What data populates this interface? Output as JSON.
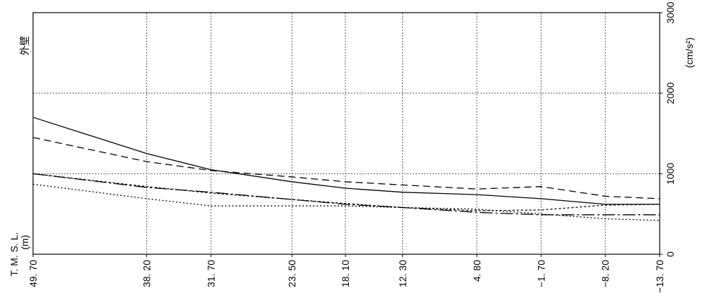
{
  "chart_data": {
    "type": "line",
    "title": "",
    "panel_label": "外壁",
    "xlabel": "T. M. S. L.",
    "x_unit": "(m)",
    "ylabel": "(cm/s²)",
    "x": [
      49.7,
      38.2,
      31.7,
      23.5,
      18.1,
      12.3,
      4.8,
      -1.7,
      -8.2,
      -13.7
    ],
    "x_tick_labels": [
      "49. 70",
      "38. 20",
      "31. 70",
      "23. 50",
      "18. 10",
      "12. 30",
      "4. 80",
      "−1. 70",
      "−8. 20",
      "−13. 70"
    ],
    "y_ticks": [
      0,
      1000,
      2000,
      3000
    ],
    "ylim": [
      0,
      3000
    ],
    "grid": true,
    "series": [
      {
        "values": [
          1700,
          1250,
          1050,
          900,
          820,
          770,
          740,
          690,
          620,
          620
        ],
        "color": "#000000",
        "dash": ""
      },
      {
        "values": [
          1450,
          1150,
          1040,
          960,
          900,
          860,
          810,
          840,
          720,
          690
        ],
        "color": "#000000",
        "dash": "10,6"
      },
      {
        "values": [
          1000,
          830,
          770,
          680,
          620,
          580,
          520,
          490,
          490,
          490
        ],
        "color": "#000000",
        "dash": "18,4,3,4"
      },
      {
        "values": [
          1000,
          840,
          760,
          680,
          630,
          580,
          540,
          550,
          610,
          620
        ],
        "color": "#000000",
        "dash": "3,3"
      },
      {
        "values": [
          870,
          690,
          600,
          600,
          600,
          580,
          560,
          500,
          440,
          420
        ],
        "color": "#000000",
        "dash": "2,3"
      }
    ]
  }
}
